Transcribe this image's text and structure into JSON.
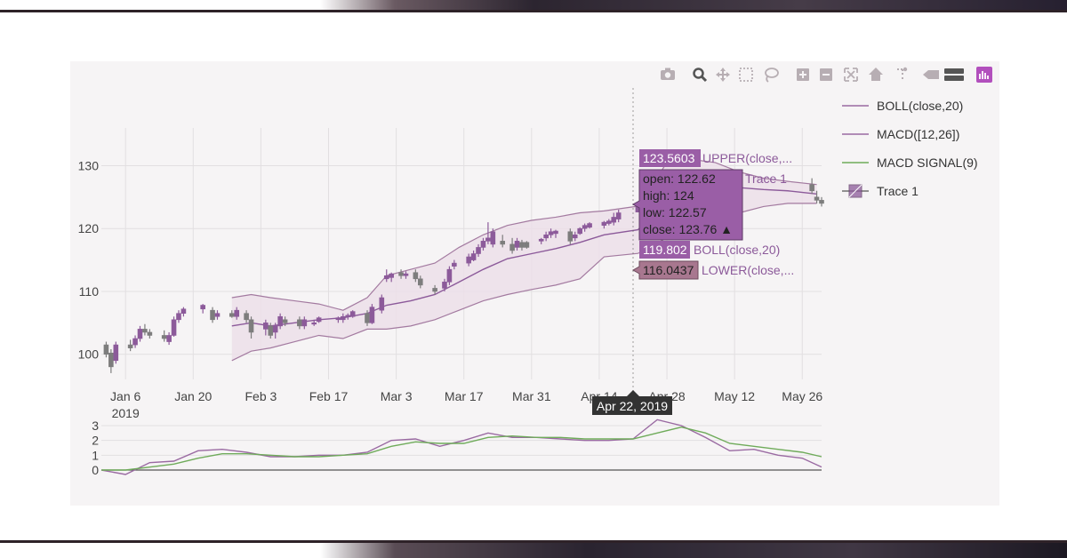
{
  "colors": {
    "purple": "#8c5a9a",
    "band_fill": "#ecdfe9",
    "band_line": "#a37aa0",
    "grey": "#7d7d7d",
    "green": "#6fab5a",
    "tooltip_purple": "#9a5ea6",
    "lower_box": "#a8778f",
    "dark": "#333333"
  },
  "modebar": {
    "icons": [
      "camera-icon",
      "zoom-icon",
      "pan-icon",
      "box-select-icon",
      "lasso-icon",
      "zoom-in-icon",
      "zoom-out-icon",
      "autoscale-icon",
      "reset-axes-icon",
      "spike-lines-icon",
      "hover-closest-icon",
      "hover-compare-icon",
      "plotly-logo-icon"
    ]
  },
  "legend": {
    "items": [
      {
        "label": "BOLL(close,20)",
        "color": "#9a6aa2",
        "kind": "line"
      },
      {
        "label": "MACD([12,26])",
        "color": "#9a6aa2",
        "kind": "line"
      },
      {
        "label": "MACD SIGNAL(9)",
        "color": "#6fab5a",
        "kind": "line"
      },
      {
        "label": "Trace 1",
        "color": "#8c5a9a",
        "kind": "box"
      }
    ]
  },
  "hover": {
    "upper_value": "123.5603",
    "upper_label": "UPPER(close,...",
    "ohlc": [
      "open: 122.62",
      "high: 124",
      "low: 122.57",
      "close: 123.76 ▲"
    ],
    "trace_label": "Trace 1",
    "boll_value": "119.802",
    "boll_label": "BOLL(close,20)",
    "lower_value": "116.0437",
    "lower_label": "LOWER(close,...",
    "x_label": "Apr 22, 2019"
  },
  "chart_data": [
    {
      "type": "candlestick",
      "title": "",
      "ylim": [
        96,
        136
      ],
      "yticks": [
        100,
        110,
        120,
        130
      ],
      "x_tick_labels": [
        "Jan 6",
        "Jan 20",
        "Feb 3",
        "Feb 17",
        "Mar 3",
        "Mar 17",
        "Mar 31",
        "Apr 14",
        "Apr 28",
        "May 12",
        "May 26"
      ],
      "x_year_label": "2019",
      "x_range": [
        "2019-01-01",
        "2019-05-30"
      ],
      "grid": true,
      "legend_position": "right",
      "bollinger": {
        "dates": [
          "2019-01-28",
          "2019-02-01",
          "2019-02-05",
          "2019-02-10",
          "2019-02-15",
          "2019-02-20",
          "2019-02-25",
          "2019-03-01",
          "2019-03-06",
          "2019-03-11",
          "2019-03-16",
          "2019-03-21",
          "2019-03-26",
          "2019-03-31",
          "2019-04-05",
          "2019-04-10",
          "2019-04-15",
          "2019-04-22",
          "2019-04-28",
          "2019-05-03",
          "2019-05-08",
          "2019-05-13",
          "2019-05-18",
          "2019-05-23",
          "2019-05-29"
        ],
        "upper": [
          109.0,
          109.5,
          109.0,
          108.5,
          108.0,
          107.0,
          109.0,
          112.5,
          113.5,
          114.5,
          117.0,
          119.0,
          120.5,
          121.3,
          121.8,
          122.5,
          122.8,
          123.56,
          130.5,
          131.0,
          130.5,
          129.0,
          128.0,
          127.5,
          127.0
        ],
        "mid": [
          104.5,
          105.0,
          104.5,
          105.0,
          105.5,
          105.8,
          106.5,
          107.8,
          108.5,
          109.5,
          111.5,
          113.5,
          115.2,
          116.0,
          116.8,
          117.8,
          119.0,
          119.8,
          124.5,
          125.5,
          126.0,
          126.5,
          126.2,
          126.0,
          125.5
        ],
        "lower": [
          99.0,
          100.5,
          101.0,
          102.0,
          103.0,
          102.5,
          104.0,
          104.0,
          104.5,
          105.5,
          107.0,
          108.5,
          109.5,
          110.3,
          111.0,
          112.0,
          115.5,
          116.04,
          118.5,
          120.0,
          121.5,
          122.5,
          123.5,
          124.0,
          124.0
        ]
      },
      "candles": [
        {
          "date": "2019-01-02",
          "open": 101.5,
          "high": 102.0,
          "low": 99.5,
          "close": 100.0,
          "dir": "down"
        },
        {
          "date": "2019-01-03",
          "open": 100.2,
          "high": 100.8,
          "low": 97.0,
          "close": 98.0,
          "dir": "down"
        },
        {
          "date": "2019-01-04",
          "open": 99.0,
          "high": 102.0,
          "low": 98.5,
          "close": 101.5,
          "dir": "up"
        },
        {
          "date": "2019-01-07",
          "open": 101.5,
          "high": 102.3,
          "low": 100.5,
          "close": 101.0,
          "dir": "down"
        },
        {
          "date": "2019-01-08",
          "open": 101.5,
          "high": 103.0,
          "low": 101.0,
          "close": 102.5,
          "dir": "up"
        },
        {
          "date": "2019-01-09",
          "open": 102.5,
          "high": 104.5,
          "low": 102.0,
          "close": 104.0,
          "dir": "up"
        },
        {
          "date": "2019-01-10",
          "open": 104.0,
          "high": 104.8,
          "low": 103.0,
          "close": 103.5,
          "dir": "down"
        },
        {
          "date": "2019-01-11",
          "open": 103.5,
          "high": 104.0,
          "low": 102.5,
          "close": 103.0,
          "dir": "down"
        },
        {
          "date": "2019-01-14",
          "open": 103.0,
          "high": 103.8,
          "low": 102.0,
          "close": 102.5,
          "dir": "down"
        },
        {
          "date": "2019-01-15",
          "open": 102.0,
          "high": 103.5,
          "low": 101.5,
          "close": 103.0,
          "dir": "up"
        },
        {
          "date": "2019-01-16",
          "open": 103.0,
          "high": 106.0,
          "low": 102.8,
          "close": 105.5,
          "dir": "up"
        },
        {
          "date": "2019-01-17",
          "open": 105.5,
          "high": 107.0,
          "low": 105.0,
          "close": 106.5,
          "dir": "up"
        },
        {
          "date": "2019-01-18",
          "open": 106.5,
          "high": 107.5,
          "low": 106.0,
          "close": 107.2,
          "dir": "up"
        },
        {
          "date": "2019-01-22",
          "open": 107.2,
          "high": 108.0,
          "low": 106.5,
          "close": 107.8,
          "dir": "up"
        },
        {
          "date": "2019-01-24",
          "open": 107.0,
          "high": 107.5,
          "low": 105.0,
          "close": 105.5,
          "dir": "down"
        },
        {
          "date": "2019-01-25",
          "open": 106.0,
          "high": 107.0,
          "low": 105.5,
          "close": 106.5,
          "dir": "up"
        },
        {
          "date": "2019-01-28",
          "open": 106.5,
          "high": 107.0,
          "low": 105.8,
          "close": 106.0,
          "dir": "down"
        },
        {
          "date": "2019-01-29",
          "open": 106.0,
          "high": 107.5,
          "low": 105.5,
          "close": 107.0,
          "dir": "up"
        },
        {
          "date": "2019-01-31",
          "open": 106.5,
          "high": 107.0,
          "low": 105.0,
          "close": 105.5,
          "dir": "down"
        },
        {
          "date": "2019-02-01",
          "open": 105.5,
          "high": 106.0,
          "low": 102.5,
          "close": 103.5,
          "dir": "down"
        },
        {
          "date": "2019-02-04",
          "open": 104.0,
          "high": 105.5,
          "low": 103.0,
          "close": 105.0,
          "dir": "up"
        },
        {
          "date": "2019-02-05",
          "open": 104.5,
          "high": 105.0,
          "low": 102.5,
          "close": 103.0,
          "dir": "down"
        },
        {
          "date": "2019-02-06",
          "open": 103.5,
          "high": 105.0,
          "low": 102.5,
          "close": 104.5,
          "dir": "up"
        },
        {
          "date": "2019-02-07",
          "open": 104.5,
          "high": 106.5,
          "low": 104.0,
          "close": 106.0,
          "dir": "up"
        },
        {
          "date": "2019-02-08",
          "open": 105.5,
          "high": 106.0,
          "low": 104.5,
          "close": 105.0,
          "dir": "down"
        },
        {
          "date": "2019-02-11",
          "open": 105.5,
          "high": 106.0,
          "low": 104.0,
          "close": 104.5,
          "dir": "down"
        },
        {
          "date": "2019-02-12",
          "open": 104.5,
          "high": 106.0,
          "low": 104.0,
          "close": 105.5,
          "dir": "up"
        },
        {
          "date": "2019-02-14",
          "open": 105.0,
          "high": 105.5,
          "low": 104.5,
          "close": 105.0,
          "dir": "up"
        },
        {
          "date": "2019-02-15",
          "open": 105.2,
          "high": 106.0,
          "low": 105.0,
          "close": 105.8,
          "dir": "up"
        },
        {
          "date": "2019-02-19",
          "open": 105.5,
          "high": 106.0,
          "low": 105.0,
          "close": 105.8,
          "dir": "up"
        },
        {
          "date": "2019-02-20",
          "open": 105.5,
          "high": 106.5,
          "low": 105.0,
          "close": 106.0,
          "dir": "up"
        },
        {
          "date": "2019-02-21",
          "open": 106.0,
          "high": 106.5,
          "low": 105.5,
          "close": 106.2,
          "dir": "up"
        },
        {
          "date": "2019-02-22",
          "open": 106.0,
          "high": 107.0,
          "low": 105.8,
          "close": 106.8,
          "dir": "up"
        },
        {
          "date": "2019-02-25",
          "open": 106.5,
          "high": 107.0,
          "low": 104.5,
          "close": 105.0,
          "dir": "down"
        },
        {
          "date": "2019-02-26",
          "open": 105.0,
          "high": 108.0,
          "low": 104.8,
          "close": 107.5,
          "dir": "up"
        },
        {
          "date": "2019-02-28",
          "open": 107.0,
          "high": 109.5,
          "low": 106.5,
          "close": 109.0,
          "dir": "up"
        },
        {
          "date": "2019-03-01",
          "open": 112.0,
          "high": 113.5,
          "low": 111.5,
          "close": 112.5,
          "dir": "up"
        },
        {
          "date": "2019-03-02",
          "open": 112.2,
          "high": 113.0,
          "low": 111.5,
          "close": 112.8,
          "dir": "up"
        },
        {
          "date": "2019-03-04",
          "open": 113.0,
          "high": 113.5,
          "low": 112.0,
          "close": 112.5,
          "dir": "down"
        },
        {
          "date": "2019-03-05",
          "open": 112.5,
          "high": 113.2,
          "low": 112.0,
          "close": 112.8,
          "dir": "up"
        },
        {
          "date": "2019-03-07",
          "open": 113.0,
          "high": 113.5,
          "low": 111.5,
          "close": 112.0,
          "dir": "down"
        },
        {
          "date": "2019-03-08",
          "open": 112.0,
          "high": 112.5,
          "low": 110.5,
          "close": 111.0,
          "dir": "down"
        },
        {
          "date": "2019-03-11",
          "open": 110.5,
          "high": 111.0,
          "low": 109.5,
          "close": 110.0,
          "dir": "down"
        },
        {
          "date": "2019-03-13",
          "open": 110.5,
          "high": 112.0,
          "low": 110.0,
          "close": 111.5,
          "dir": "up"
        },
        {
          "date": "2019-03-14",
          "open": 111.5,
          "high": 114.0,
          "low": 111.0,
          "close": 113.5,
          "dir": "up"
        },
        {
          "date": "2019-03-15",
          "open": 114.0,
          "high": 115.0,
          "low": 113.5,
          "close": 114.5,
          "dir": "up"
        },
        {
          "date": "2019-03-18",
          "open": 114.5,
          "high": 116.0,
          "low": 114.0,
          "close": 115.5,
          "dir": "up"
        },
        {
          "date": "2019-03-19",
          "open": 115.0,
          "high": 116.5,
          "low": 114.8,
          "close": 116.0,
          "dir": "up"
        },
        {
          "date": "2019-03-20",
          "open": 116.0,
          "high": 117.5,
          "low": 115.5,
          "close": 117.0,
          "dir": "up"
        },
        {
          "date": "2019-03-21",
          "open": 117.0,
          "high": 118.5,
          "low": 116.5,
          "close": 118.0,
          "dir": "up"
        },
        {
          "date": "2019-03-22",
          "open": 118.0,
          "high": 121.0,
          "low": 117.5,
          "close": 118.5,
          "dir": "up"
        },
        {
          "date": "2019-03-23",
          "open": 117.5,
          "high": 120.0,
          "low": 117.0,
          "close": 119.5,
          "dir": "up"
        },
        {
          "date": "2019-03-25",
          "open": 118.0,
          "high": 119.0,
          "low": 117.0,
          "close": 117.5,
          "dir": "down"
        },
        {
          "date": "2019-03-27",
          "open": 117.5,
          "high": 118.5,
          "low": 116.0,
          "close": 116.5,
          "dir": "down"
        },
        {
          "date": "2019-03-28",
          "open": 117.0,
          "high": 118.5,
          "low": 116.5,
          "close": 118.0,
          "dir": "up"
        },
        {
          "date": "2019-03-29",
          "open": 117.8,
          "high": 118.2,
          "low": 116.5,
          "close": 117.0,
          "dir": "down"
        },
        {
          "date": "2019-03-30",
          "open": 117.0,
          "high": 118.0,
          "low": 116.8,
          "close": 117.8,
          "dir": "down"
        },
        {
          "date": "2019-04-02",
          "open": 118.0,
          "high": 118.5,
          "low": 117.5,
          "close": 118.3,
          "dir": "up"
        },
        {
          "date": "2019-04-03",
          "open": 118.5,
          "high": 119.5,
          "low": 118.0,
          "close": 119.0,
          "dir": "up"
        },
        {
          "date": "2019-04-04",
          "open": 119.0,
          "high": 120.0,
          "low": 118.5,
          "close": 119.5,
          "dir": "up"
        },
        {
          "date": "2019-04-05",
          "open": 119.2,
          "high": 119.8,
          "low": 118.5,
          "close": 119.6,
          "dir": "up"
        },
        {
          "date": "2019-04-08",
          "open": 119.5,
          "high": 120.0,
          "low": 117.5,
          "close": 118.0,
          "dir": "down"
        },
        {
          "date": "2019-04-09",
          "open": 118.5,
          "high": 119.5,
          "low": 118.0,
          "close": 119.0,
          "dir": "up"
        },
        {
          "date": "2019-04-10",
          "open": 119.2,
          "high": 120.2,
          "low": 119.0,
          "close": 120.0,
          "dir": "up"
        },
        {
          "date": "2019-04-11",
          "open": 120.0,
          "high": 120.8,
          "low": 119.5,
          "close": 120.5,
          "dir": "up"
        },
        {
          "date": "2019-04-12",
          "open": 120.2,
          "high": 121.0,
          "low": 120.0,
          "close": 120.8,
          "dir": "up"
        },
        {
          "date": "2019-04-15",
          "open": 120.5,
          "high": 121.2,
          "low": 120.0,
          "close": 121.0,
          "dir": "up"
        },
        {
          "date": "2019-04-16",
          "open": 120.8,
          "high": 121.5,
          "low": 120.5,
          "close": 121.2,
          "dir": "up"
        },
        {
          "date": "2019-04-17",
          "open": 121.0,
          "high": 122.5,
          "low": 120.5,
          "close": 121.8,
          "dir": "up"
        },
        {
          "date": "2019-04-18",
          "open": 121.5,
          "high": 123.0,
          "low": 121.0,
          "close": 122.5,
          "dir": "up"
        },
        {
          "date": "2019-04-22",
          "open": 122.62,
          "high": 124.0,
          "low": 122.57,
          "close": 123.76,
          "dir": "up"
        },
        {
          "date": "2019-04-23",
          "open": 123.5,
          "high": 126.0,
          "low": 123.0,
          "close": 125.5,
          "dir": "up"
        },
        {
          "date": "2019-05-28",
          "open": 127.0,
          "high": 128.0,
          "low": 125.5,
          "close": 126.0,
          "dir": "down"
        },
        {
          "date": "2019-05-29",
          "open": 125.0,
          "high": 126.0,
          "low": 124.0,
          "close": 124.5,
          "dir": "down"
        },
        {
          "date": "2019-05-30",
          "open": 124.5,
          "high": 125.0,
          "low": 123.5,
          "close": 124.0,
          "dir": "down"
        }
      ]
    },
    {
      "type": "line",
      "title": "",
      "ylim": [
        0,
        3.3
      ],
      "yticks": [
        0,
        1,
        2,
        3
      ],
      "grid": true,
      "x": [
        "2019-01-01",
        "2019-01-06",
        "2019-01-11",
        "2019-01-16",
        "2019-01-21",
        "2019-01-26",
        "2019-01-31",
        "2019-02-05",
        "2019-02-10",
        "2019-02-15",
        "2019-02-20",
        "2019-02-25",
        "2019-03-02",
        "2019-03-07",
        "2019-03-12",
        "2019-03-17",
        "2019-03-22",
        "2019-03-27",
        "2019-04-01",
        "2019-04-06",
        "2019-04-11",
        "2019-04-16",
        "2019-04-21",
        "2019-04-26",
        "2019-05-01",
        "2019-05-06",
        "2019-05-11",
        "2019-05-16",
        "2019-05-21",
        "2019-05-26",
        "2019-05-30"
      ],
      "series": [
        {
          "name": "MACD([12,26])",
          "color": "#9a6aa2",
          "values": [
            0,
            -0.3,
            0.5,
            0.6,
            1.3,
            1.4,
            1.2,
            0.9,
            0.9,
            1.0,
            1.0,
            1.2,
            2.0,
            2.1,
            1.6,
            2.0,
            2.5,
            2.2,
            2.2,
            2.1,
            2.0,
            2.0,
            2.1,
            3.4,
            3.0,
            2.2,
            1.3,
            1.4,
            1.0,
            0.8,
            0.2
          ]
        },
        {
          "name": "MACD SIGNAL(9)",
          "color": "#6fab5a",
          "values": [
            0,
            0,
            0.2,
            0.4,
            0.8,
            1.1,
            1.1,
            1.0,
            0.9,
            0.9,
            1.0,
            1.1,
            1.6,
            1.9,
            1.8,
            1.8,
            2.2,
            2.3,
            2.2,
            2.2,
            2.1,
            2.1,
            2.1,
            2.5,
            2.9,
            2.5,
            1.8,
            1.6,
            1.4,
            1.2,
            0.9
          ]
        }
      ]
    }
  ]
}
